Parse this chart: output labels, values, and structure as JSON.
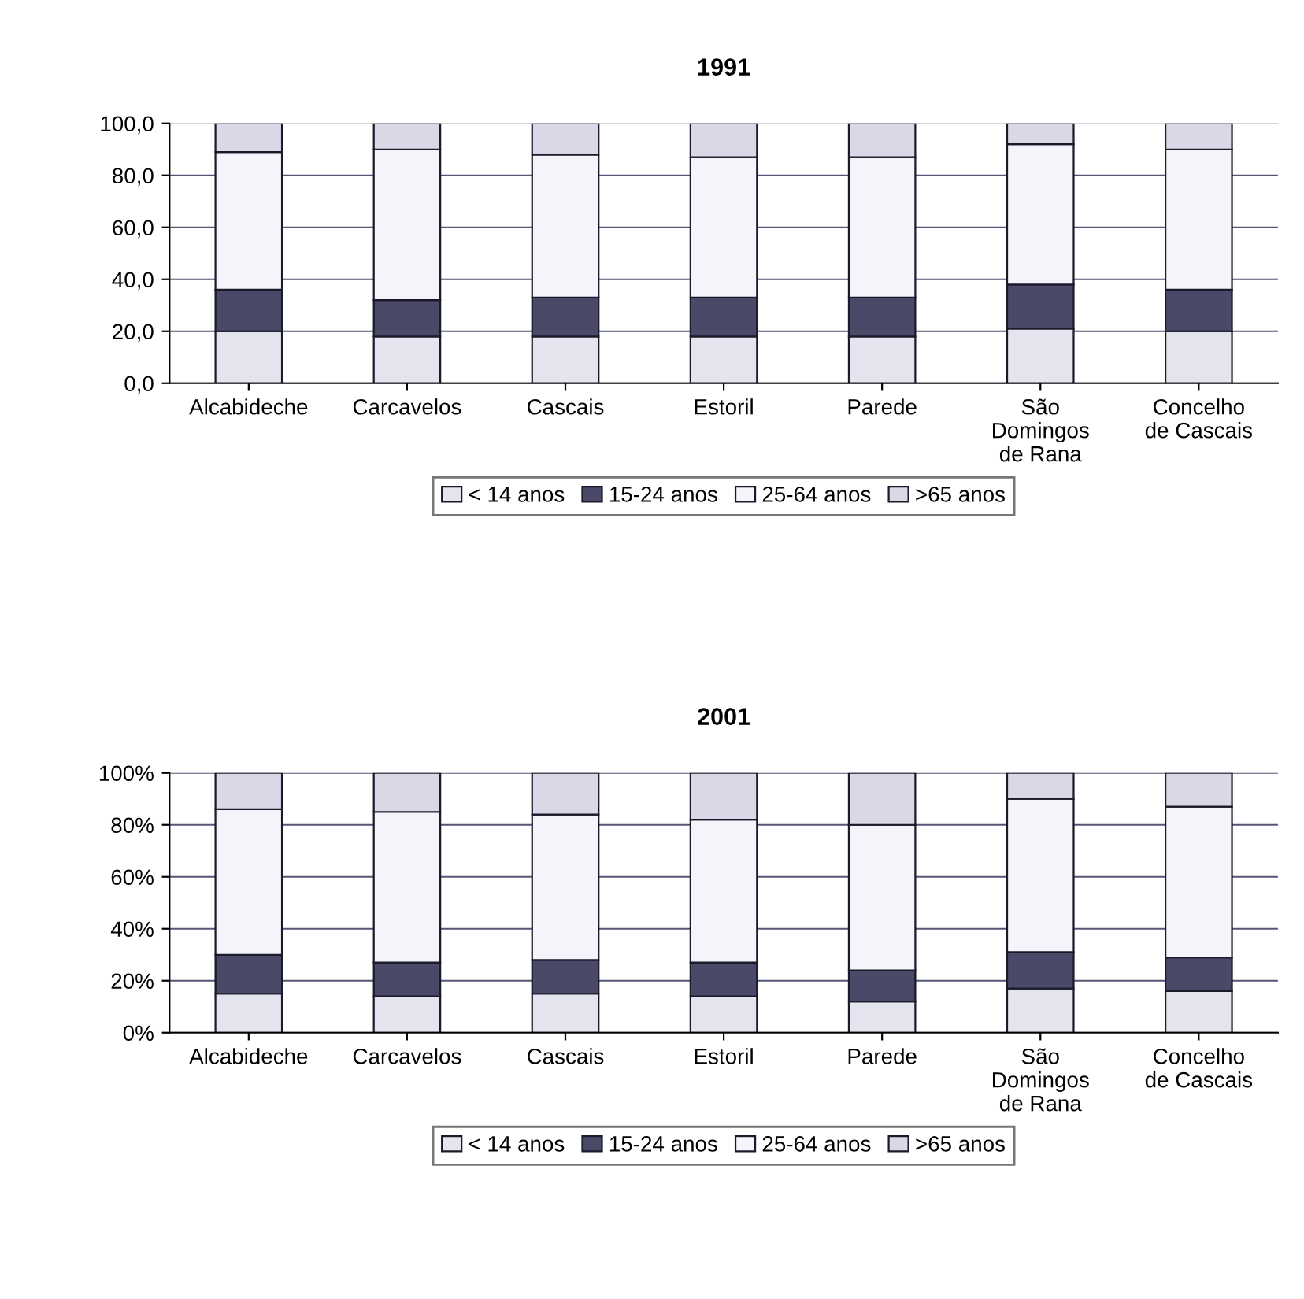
{
  "chart_data": [
    {
      "type": "bar",
      "title": "1991",
      "stacked": true,
      "grid": "y",
      "legend": "bottom",
      "categories": [
        "Alcabideche",
        "Carcavelos",
        "Cascais",
        "Estoril",
        "Parede",
        "São\nDomingos\nde Rana",
        "Concelho\nde Cascais"
      ],
      "ylim": [
        0,
        100
      ],
      "yticks": [
        {
          "value": 0,
          "label": "0,0"
        },
        {
          "value": 20,
          "label": "20,0"
        },
        {
          "value": 40,
          "label": "40,0"
        },
        {
          "value": 60,
          "label": "60,0"
        },
        {
          "value": 80,
          "label": "80,0"
        },
        {
          "value": 100,
          "label": "100,0"
        }
      ],
      "series": [
        {
          "name": "< 14 anos",
          "color": "#e4e4ee",
          "values": [
            20,
            18,
            18,
            18,
            18,
            21,
            20
          ]
        },
        {
          "name": "15-24 anos",
          "color": "#4a4a68",
          "values": [
            16,
            14,
            15,
            15,
            15,
            17,
            16
          ]
        },
        {
          "name": "25-64 anos",
          "color": "#f4f4fa",
          "values": [
            53,
            58,
            55,
            54,
            54,
            54,
            54
          ]
        },
        {
          "name": ">65 anos",
          "color": "#d8d8e6",
          "values": [
            11,
            10,
            12,
            13,
            13,
            8,
            10
          ]
        }
      ]
    },
    {
      "type": "bar",
      "title": "2001",
      "stacked": true,
      "grid": "y",
      "legend": "bottom",
      "categories": [
        "Alcabideche",
        "Carcavelos",
        "Cascais",
        "Estoril",
        "Parede",
        "São\nDomingos\nde Rana",
        "Concelho\nde Cascais"
      ],
      "ylim": [
        0,
        100
      ],
      "yticks": [
        {
          "value": 0,
          "label": "0%"
        },
        {
          "value": 20,
          "label": "20%"
        },
        {
          "value": 40,
          "label": "40%"
        },
        {
          "value": 60,
          "label": "60%"
        },
        {
          "value": 80,
          "label": "80%"
        },
        {
          "value": 100,
          "label": "100%"
        }
      ],
      "series": [
        {
          "name": "< 14 anos",
          "color": "#e4e4ee",
          "values": [
            15,
            14,
            15,
            14,
            12,
            17,
            16
          ]
        },
        {
          "name": "15-24 anos",
          "color": "#4a4a68",
          "values": [
            15,
            13,
            13,
            13,
            12,
            14,
            13
          ]
        },
        {
          "name": "25-64 anos",
          "color": "#f4f4fa",
          "values": [
            56,
            58,
            56,
            55,
            56,
            59,
            58
          ]
        },
        {
          "name": ">65 anos",
          "color": "#d8d8e6",
          "values": [
            14,
            15,
            16,
            18,
            20,
            10,
            13
          ]
        }
      ]
    }
  ]
}
